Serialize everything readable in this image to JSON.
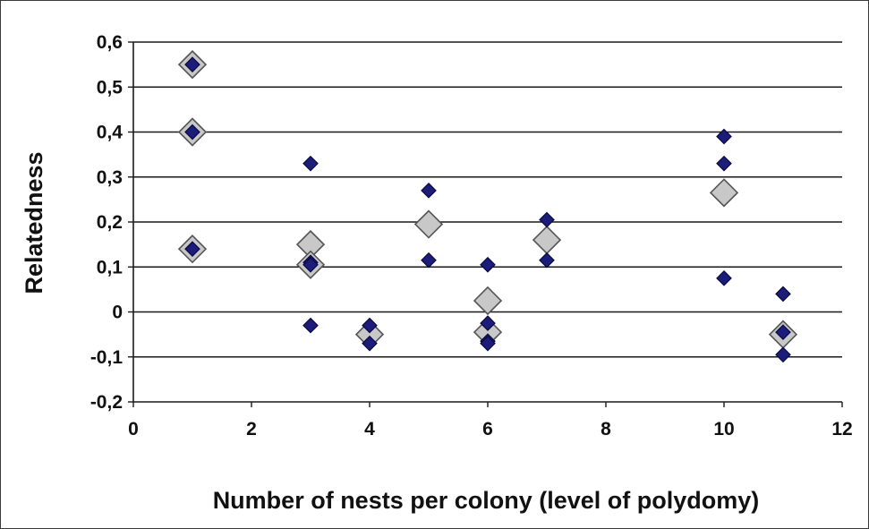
{
  "chart_data": {
    "type": "scatter",
    "title": "",
    "xlabel": "Number of nests per colony (level of polydomy)",
    "ylabel": "Relatedness",
    "xlim": [
      0,
      12
    ],
    "ylim": [
      -0.2,
      0.6
    ],
    "x_ticks": [
      0,
      2,
      4,
      6,
      8,
      10,
      12
    ],
    "y_ticks": [
      -0.2,
      -0.1,
      0,
      0.1,
      0.2,
      0.3,
      0.4,
      0.5,
      0.6
    ],
    "x_tick_labels": [
      "0",
      "2",
      "4",
      "6",
      "8",
      "10",
      "12"
    ],
    "y_tick_labels": [
      "-0,2",
      "-0,1",
      "0",
      "0,1",
      "0,2",
      "0,3",
      "0,4",
      "0,5",
      "0,6"
    ],
    "grid": "horizontal",
    "legend": "none",
    "series": [
      {
        "marker": "large-diamond",
        "color": "#c8c8c8",
        "stroke": "#555555",
        "points": [
          {
            "x": 1,
            "y": 0.55
          },
          {
            "x": 1,
            "y": 0.4
          },
          {
            "x": 1,
            "y": 0.14
          },
          {
            "x": 3,
            "y": 0.15
          },
          {
            "x": 3,
            "y": 0.105
          },
          {
            "x": 4,
            "y": -0.05
          },
          {
            "x": 5,
            "y": 0.195
          },
          {
            "x": 6,
            "y": 0.025
          },
          {
            "x": 6,
            "y": -0.045
          },
          {
            "x": 7,
            "y": 0.16
          },
          {
            "x": 10,
            "y": 0.265
          },
          {
            "x": 11,
            "y": -0.05
          }
        ]
      },
      {
        "marker": "small-diamond",
        "color": "#1c1c7a",
        "stroke": "#0a0a40",
        "points": [
          {
            "x": 1,
            "y": 0.55
          },
          {
            "x": 1,
            "y": 0.4
          },
          {
            "x": 1,
            "y": 0.14
          },
          {
            "x": 3,
            "y": 0.33
          },
          {
            "x": 3,
            "y": 0.11
          },
          {
            "x": 3,
            "y": 0.105
          },
          {
            "x": 3,
            "y": -0.03
          },
          {
            "x": 4,
            "y": -0.03
          },
          {
            "x": 4,
            "y": -0.07
          },
          {
            "x": 5,
            "y": 0.27
          },
          {
            "x": 5,
            "y": 0.115
          },
          {
            "x": 6,
            "y": 0.105
          },
          {
            "x": 6,
            "y": -0.025
          },
          {
            "x": 6,
            "y": -0.065
          },
          {
            "x": 6,
            "y": -0.07
          },
          {
            "x": 7,
            "y": 0.205
          },
          {
            "x": 7,
            "y": 0.115
          },
          {
            "x": 10,
            "y": 0.39
          },
          {
            "x": 10,
            "y": 0.33
          },
          {
            "x": 10,
            "y": 0.075
          },
          {
            "x": 11,
            "y": 0.04
          },
          {
            "x": 11,
            "y": -0.045
          },
          {
            "x": 11,
            "y": -0.095
          }
        ]
      }
    ]
  }
}
